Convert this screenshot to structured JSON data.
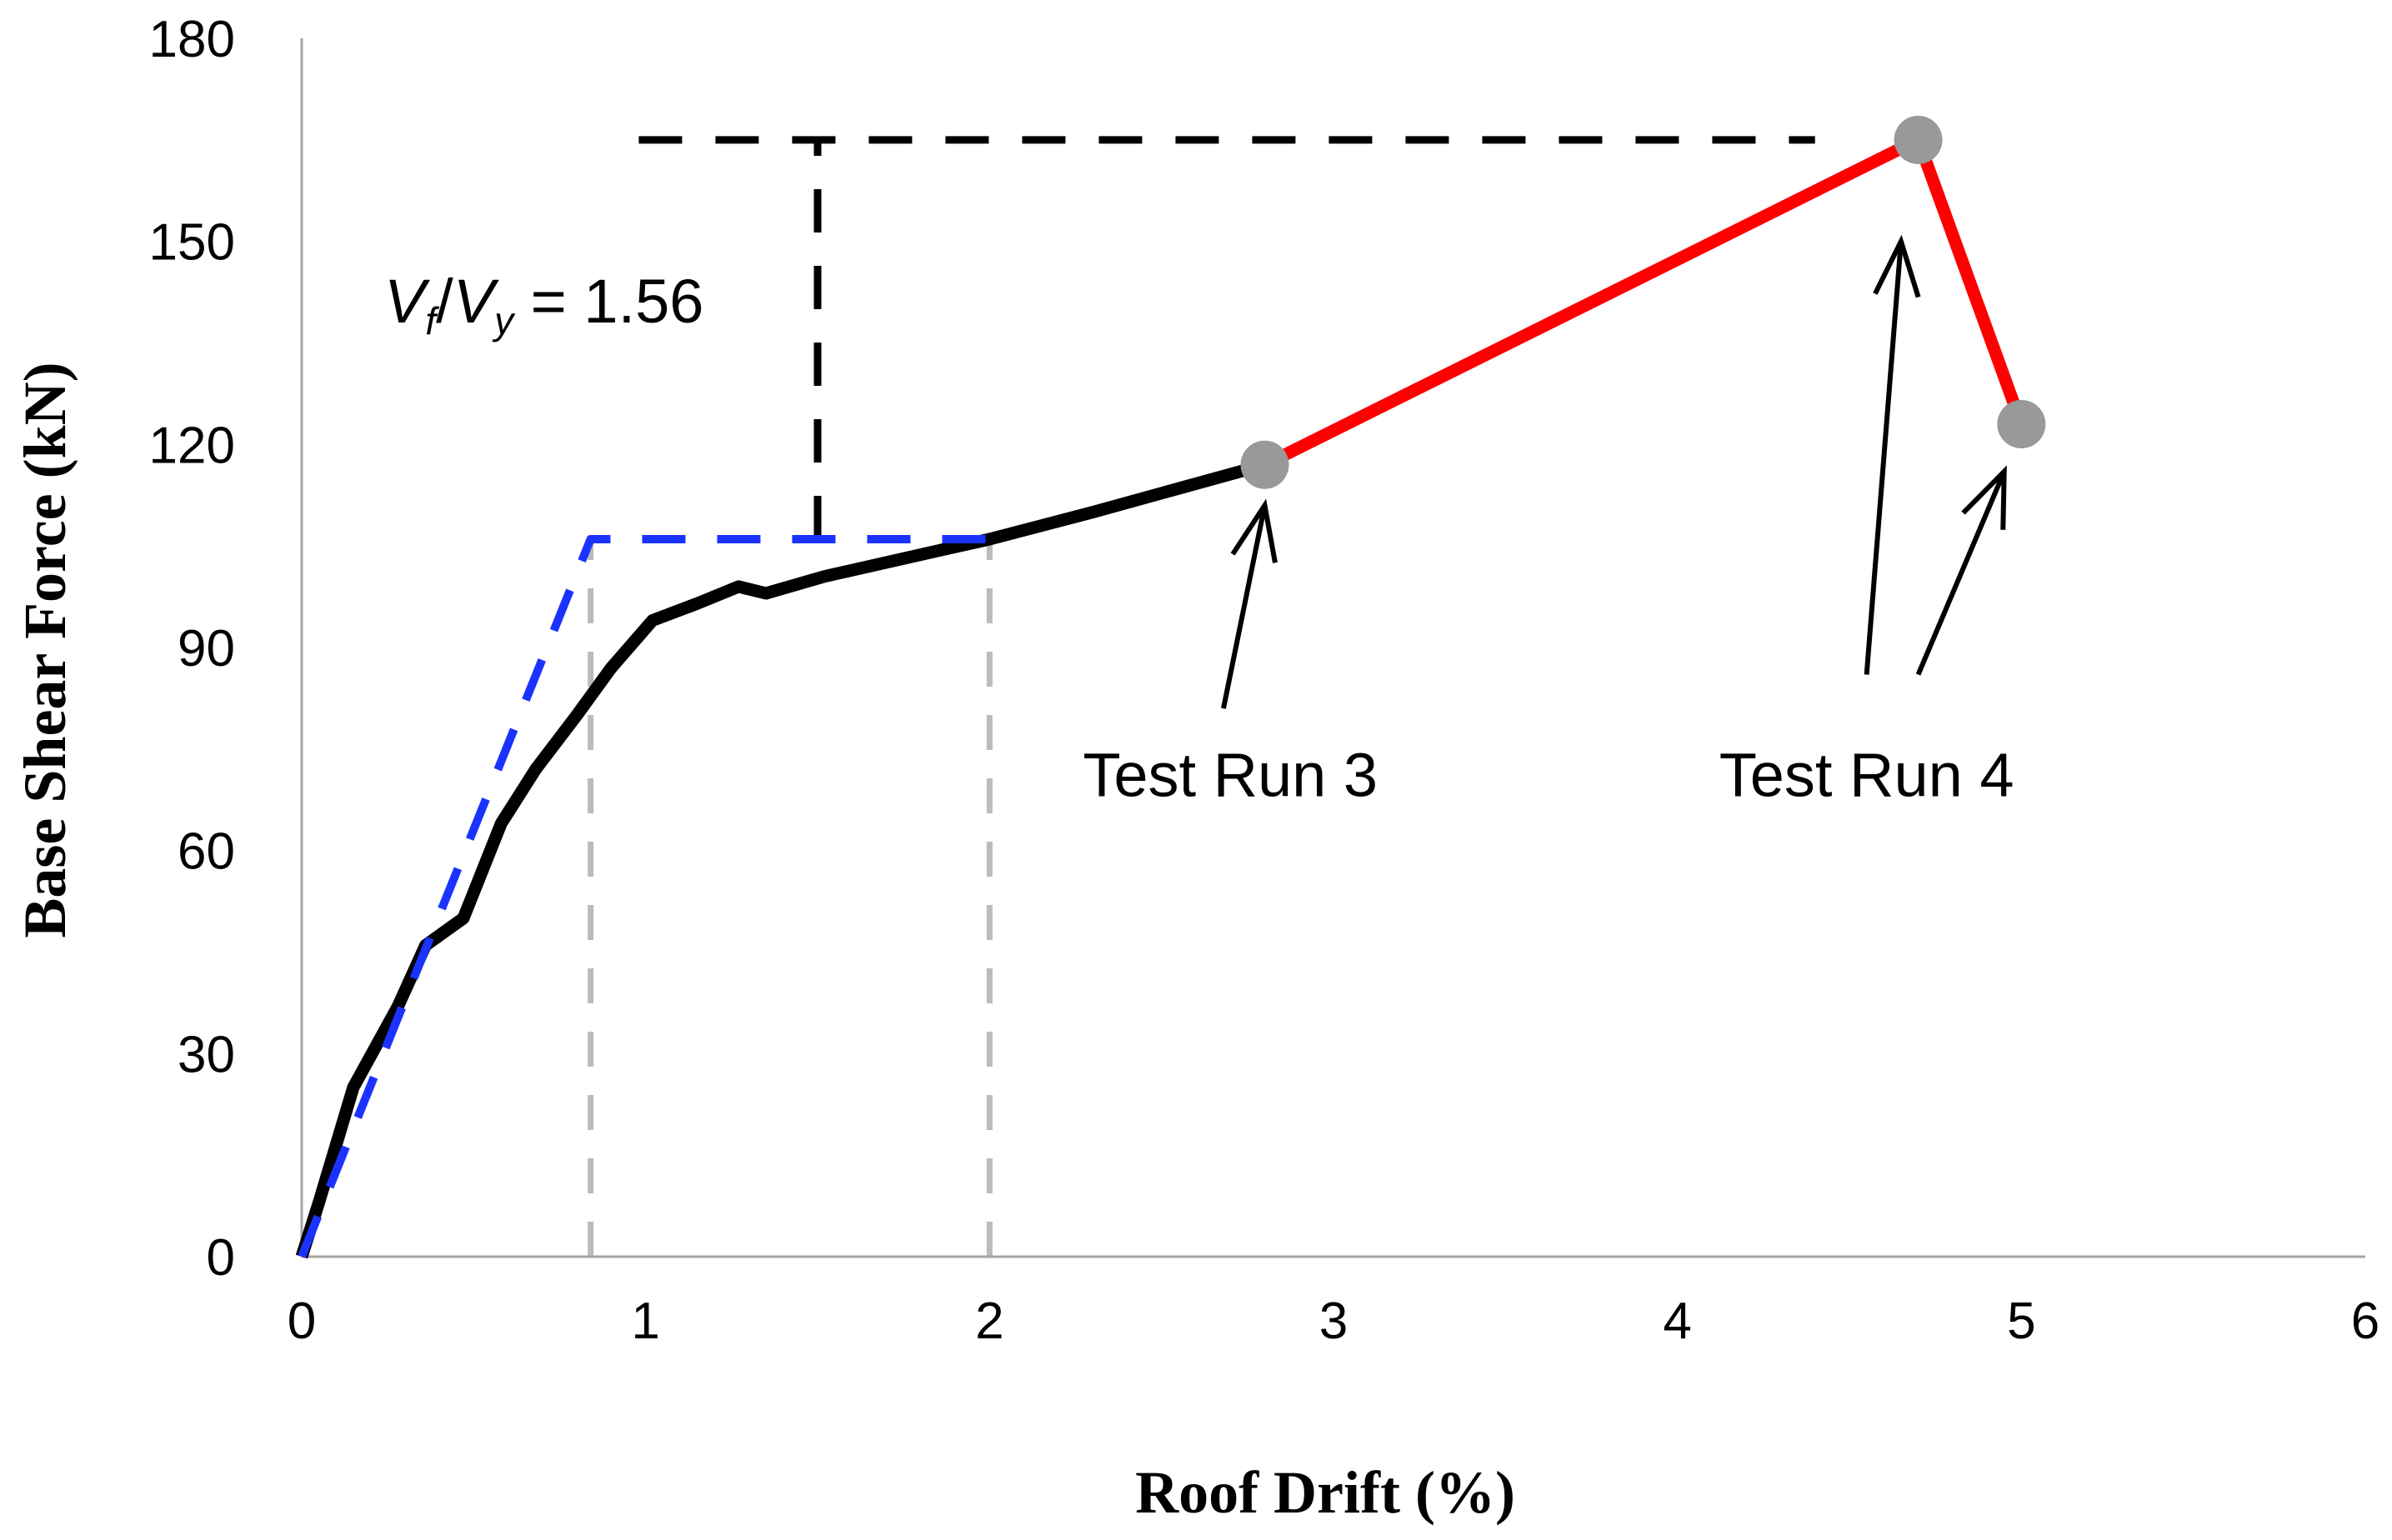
{
  "chart_data": {
    "type": "line",
    "title": "",
    "xlabel": "Roof Drift (%)",
    "ylabel": "Base Shear Force (kN)",
    "xlim": [
      0,
      6
    ],
    "ylim": [
      0,
      180
    ],
    "xticks": [
      0,
      1,
      2,
      3,
      4,
      5,
      6
    ],
    "yticks": [
      0,
      30,
      60,
      90,
      120,
      150,
      180
    ],
    "grid": false,
    "series": [
      {
        "color": "#000000",
        "style": "solid",
        "x": [
          0,
          0.05,
          0.15,
          0.28,
          0.36,
          0.47,
          0.58,
          0.68,
          0.8,
          0.9,
          1.02,
          1.15,
          1.27,
          1.35,
          1.52,
          1.78,
          2.0,
          2.3,
          2.55,
          2.8
        ],
        "y": [
          0,
          8,
          25,
          37,
          46,
          50,
          64,
          72,
          80,
          87,
          94,
          96.5,
          99,
          98,
          100.5,
          103.5,
          106,
          110,
          113.5,
          117
        ]
      },
      {
        "color": "#ff0000",
        "style": "solid",
        "x": [
          2.8,
          4.7,
          5.0
        ],
        "y": [
          117,
          165,
          123
        ]
      },
      {
        "color": "#1a33ff",
        "style": "dashed",
        "x": [
          0,
          0.84,
          2.0
        ],
        "y": [
          0,
          106,
          106
        ]
      }
    ],
    "markers": [
      {
        "x": 2.8,
        "y": 117,
        "color": "#999999"
      },
      {
        "x": 4.7,
        "y": 165,
        "color": "#999999"
      },
      {
        "x": 5.0,
        "y": 123,
        "color": "#999999"
      }
    ],
    "reference_lines": [
      {
        "kind": "vertical",
        "x": 0.84,
        "from_y": 0,
        "to_y": 106,
        "color": "#bbbbbb",
        "style": "dashed"
      },
      {
        "kind": "vertical",
        "x": 2.0,
        "from_y": 0,
        "to_y": 106,
        "color": "#bbbbbb",
        "style": "dashed"
      },
      {
        "kind": "horizontal",
        "y": 165,
        "from_x": 0.98,
        "to_x": 4.4,
        "color": "#000000",
        "style": "dashed"
      },
      {
        "kind": "vertical",
        "x": 1.5,
        "from_y": 106,
        "to_y": 165,
        "color": "#000000",
        "style": "dashed"
      }
    ],
    "annotations": [
      {
        "text": "Test Run 3",
        "text_x": 2.7,
        "text_y": 68,
        "arrows": [
          {
            "from": [
              2.68,
              81
            ],
            "to": [
              2.8,
              111
            ]
          }
        ]
      },
      {
        "text": "Test Run 4",
        "text_x": 4.55,
        "text_y": 68,
        "arrows": [
          {
            "from": [
              4.55,
              86
            ],
            "to": [
              4.65,
              150
            ]
          },
          {
            "from": [
              4.7,
              86
            ],
            "to": [
              4.95,
              116
            ]
          }
        ]
      }
    ],
    "ratio_label": {
      "v1": "V",
      "sub1": "f",
      "slash": "/",
      "v2": "V",
      "sub2": "y",
      "value": " = 1.56",
      "x": 0.24,
      "y": 138
    }
  }
}
